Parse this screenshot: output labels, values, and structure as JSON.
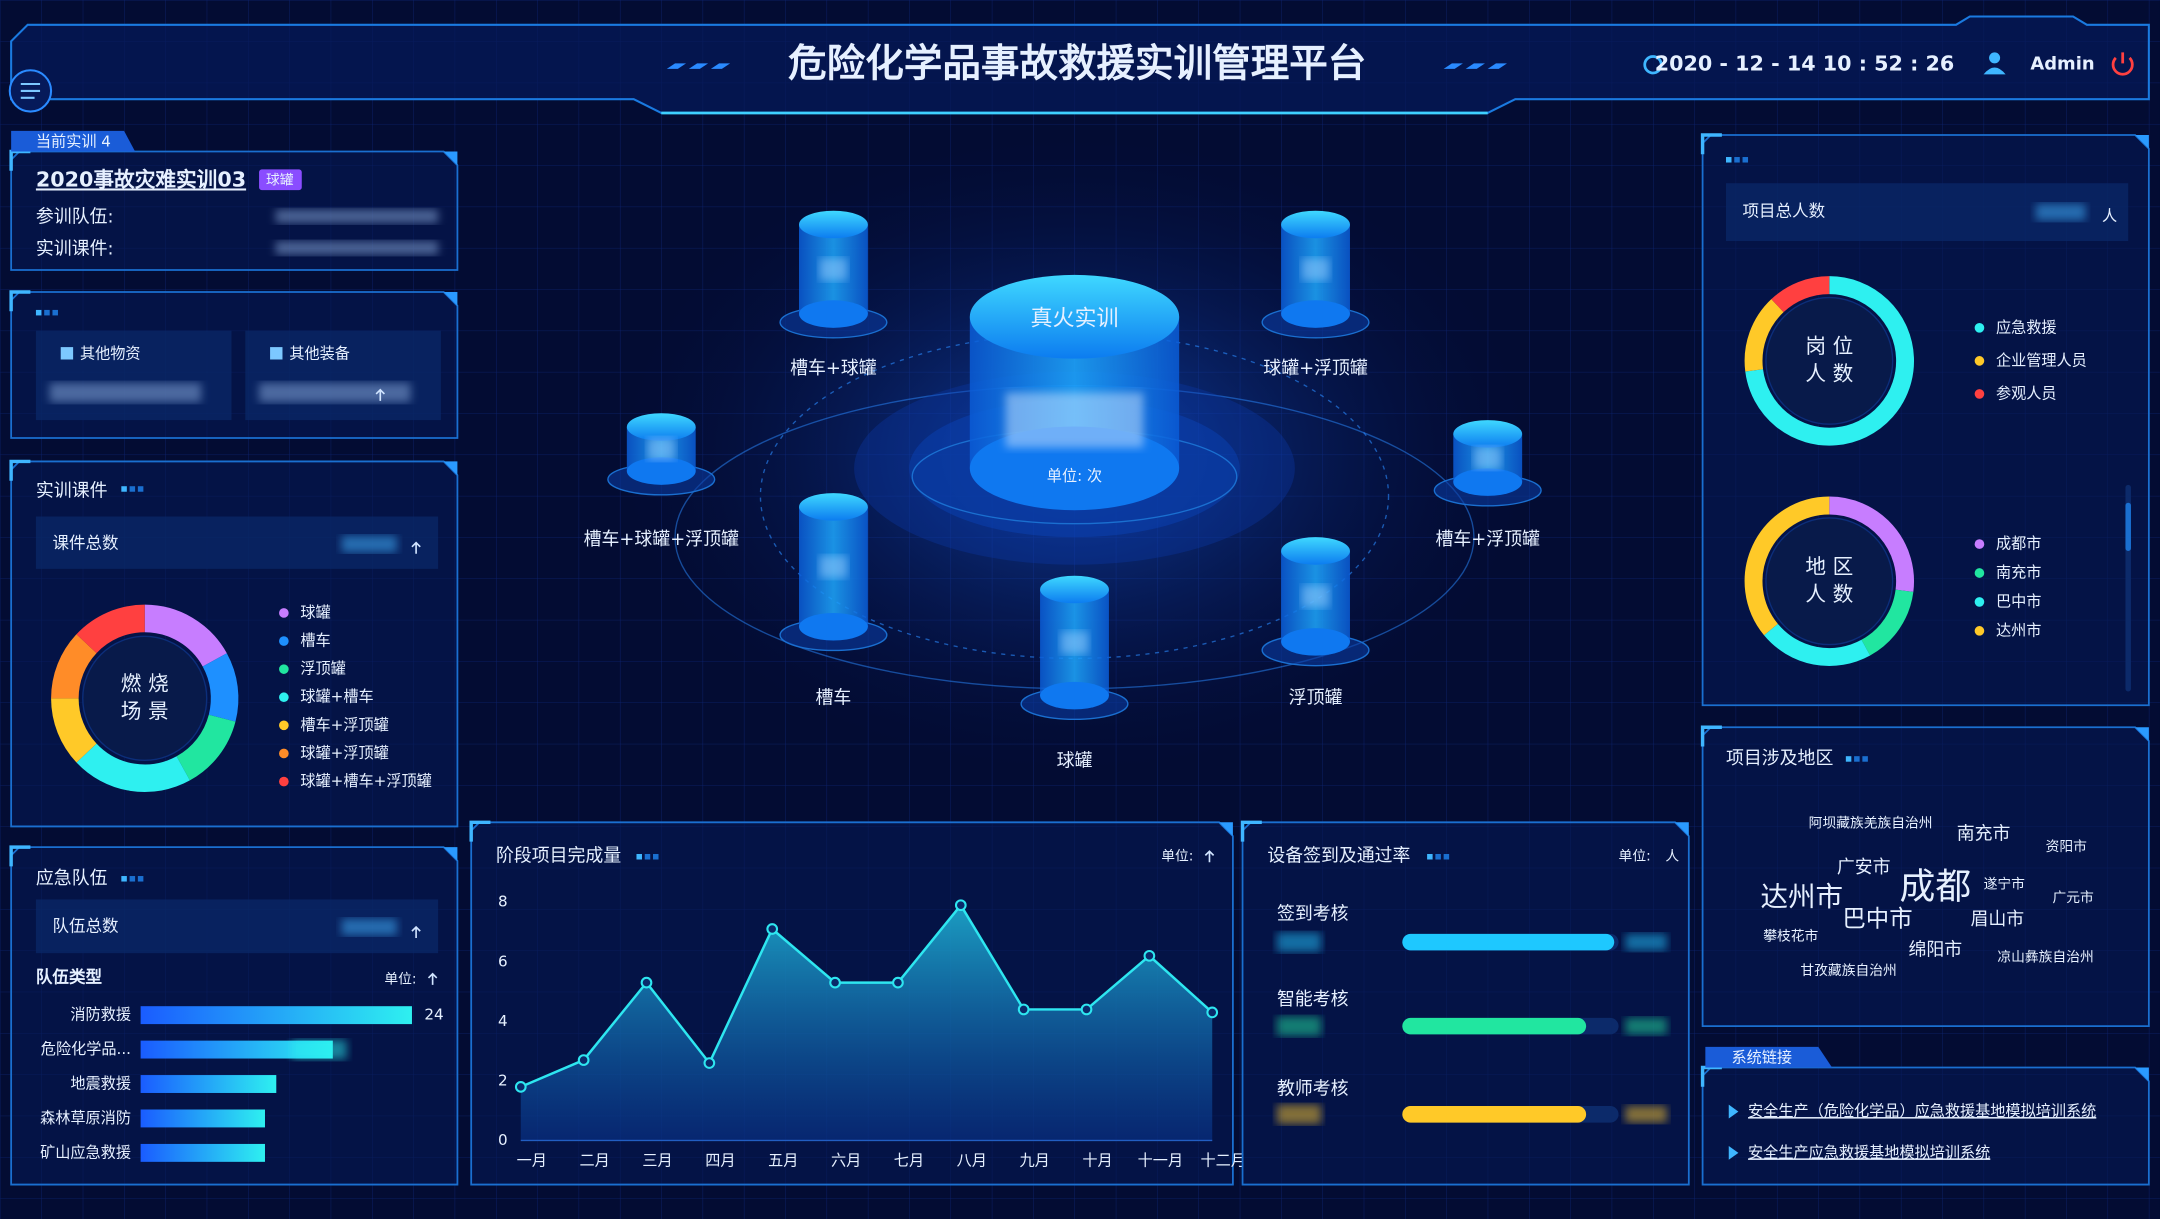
{
  "header": {
    "title": "危险化学品事故救援实训管理平台",
    "datetime": "2020 - 12 - 14  10 : 52 : 26",
    "user": "Admin"
  },
  "current_training": {
    "tag": "当前实训 4",
    "name": "2020事故灾难实训03",
    "badge": "球罐",
    "fields": [
      "参训队伍:",
      "实训课件:"
    ]
  },
  "resources": [
    "其他物资",
    "其他装备"
  ],
  "courseware": {
    "title": "实训课件",
    "total_label": "课件总数"
  },
  "teams": {
    "title": "应急队伍",
    "total_label": "队伍总数",
    "type_label": "队伍类型",
    "unit": "单位:"
  },
  "center": {
    "title": "真火实训",
    "unit": "单位: 次",
    "nodes": [
      "槽车+球罐",
      "球罐+浮顶罐",
      "槽车+球罐+浮顶罐",
      "槽车+浮顶罐",
      "槽车",
      "球罐",
      "浮顶罐"
    ]
  },
  "totals": {
    "label": "项目总人数",
    "unit": "人"
  },
  "regions": {
    "title": "项目涉及地区",
    "words": [
      {
        "text": "阿坝藏族羌族自治州",
        "color": "#1e90ff"
      },
      {
        "text": "南充市",
        "color": "#2ee6a0"
      },
      {
        "text": "资阳市",
        "color": "#1e90ff"
      },
      {
        "text": "广安市",
        "color": "#2ee6a0"
      },
      {
        "text": "成都",
        "color": "#ff5050"
      },
      {
        "text": "遂宁市",
        "color": "#2ee6f0"
      },
      {
        "text": "达州市",
        "color": "#ffc928"
      },
      {
        "text": "广元市",
        "color": "#1e90ff"
      },
      {
        "text": "巴中市",
        "color": "#2ee6f0"
      },
      {
        "text": "眉山市",
        "color": "#c77dff"
      },
      {
        "text": "攀枝花市",
        "color": "#1e90ff"
      },
      {
        "text": "绵阳市",
        "color": "#2ee6a0"
      },
      {
        "text": "凉山彝族自治州",
        "color": "#1e90ff"
      },
      {
        "text": "甘孜藏族自治州",
        "color": "#1e90ff"
      }
    ]
  },
  "links": {
    "title": "系统链接",
    "items": [
      "安全生产（危险化学品）应急救援基地模拟培训系统",
      "安全生产应急救援基地模拟培训系统"
    ]
  },
  "chart_data": [
    {
      "type": "line",
      "title": "阶段项目完成量",
      "unit": "单位:",
      "color": "#2ee6f0",
      "categories": [
        "一月",
        "二月",
        "三月",
        "四月",
        "五月",
        "六月",
        "七月",
        "八月",
        "九月",
        "十月",
        "十一月",
        "十二月"
      ],
      "values": [
        1.8,
        2.7,
        5.3,
        2.6,
        7.1,
        5.3,
        5.3,
        7.9,
        4.4,
        4.4,
        6.2,
        4.3
      ],
      "ylim": [
        0,
        8
      ],
      "yticks": [
        0,
        2,
        4,
        6,
        8
      ],
      "grid": false
    },
    {
      "type": "donut",
      "center": [
        "燃 烧",
        "场 景"
      ],
      "categories": [
        "球罐",
        "槽车",
        "浮顶罐",
        "球罐+槽车",
        "槽车+浮顶罐",
        "球罐+浮顶罐",
        "球罐+槽车+浮顶罐"
      ],
      "values": [
        17,
        12,
        13,
        21,
        12,
        12,
        13
      ],
      "colors": [
        "#c77dff",
        "#1e90ff",
        "#21e6a0",
        "#2ef0f0",
        "#ffc928",
        "#ff8c28",
        "#ff4040"
      ]
    },
    {
      "type": "donut",
      "center": [
        "岗 位",
        "人 数"
      ],
      "categories": [
        "应急救援",
        "企业管理人员",
        "参观人员"
      ],
      "values": [
        73,
        15,
        12
      ],
      "colors": [
        "#2ef0f0",
        "#ffc928",
        "#ff4040"
      ]
    },
    {
      "type": "donut",
      "center": [
        "地 区",
        "人 数"
      ],
      "categories": [
        "成都市",
        "南充市",
        "巴中市",
        "达州市"
      ],
      "values": [
        27,
        15,
        22,
        36
      ],
      "colors": [
        "#c77dff",
        "#21e6a0",
        "#2ef0f0",
        "#ffc928"
      ]
    },
    {
      "type": "hbar",
      "categories": [
        "消防救援",
        "危险化学品...",
        "地震救援",
        "森林草原消防",
        "矿山应急救援"
      ],
      "values": [
        24,
        17,
        12,
        11,
        11
      ],
      "color": "#1e90ff"
    },
    {
      "type": "progress",
      "title": "设备签到及通过率",
      "unit": "单位:",
      "unit_value": "人",
      "categories": [
        "签到考核",
        "智能考核",
        "教师考核"
      ],
      "values": [
        98,
        85,
        85
      ],
      "colors": [
        "#1ec8ff",
        "#21e6a0",
        "#ffc928"
      ],
      "xlim": [
        0,
        100
      ]
    }
  ]
}
